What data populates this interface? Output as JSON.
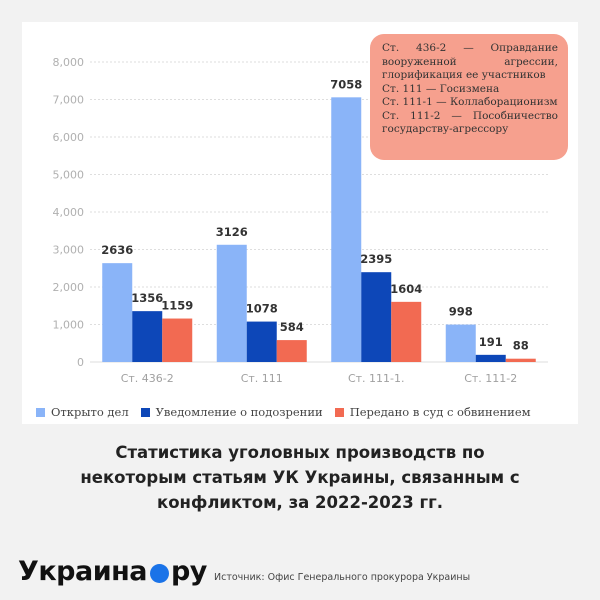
{
  "chart_data": {
    "type": "bar",
    "categories": [
      "Ст. 436-2",
      "Ст. 111",
      "Ст. 111-1.",
      "Ст. 111-2"
    ],
    "series": [
      {
        "name": "Открыто дел",
        "values": [
          2636,
          3126,
          7058,
          998
        ],
        "color": "#8ab4f8"
      },
      {
        "name": "Уведомление о подозрении",
        "values": [
          1356,
          1078,
          2395,
          191
        ],
        "color": "#0d47b8"
      },
      {
        "name": "Передано в суд с обвинением",
        "values": [
          1159,
          584,
          1604,
          88
        ],
        "color": "#f26a52"
      }
    ],
    "ylim": [
      0,
      8000
    ],
    "yticks": [
      "0",
      "1,000",
      "2,000",
      "3,000",
      "4,000",
      "5,000",
      "6,000",
      "7,000",
      "8,000"
    ],
    "grid": true,
    "legend": "bottom"
  },
  "note": {
    "lines": [
      "Ст. 436-2 — Оправдание",
      "вооруженной агрессии,",
      "глорификация ее участников",
      "Ст. 111 — Госизмена",
      "Ст. 111-1 — Коллаборационизм",
      "Ст. 111-2 — Пособничество",
      "государству-агрессору"
    ]
  },
  "caption": {
    "lines": [
      "Статистика уголовных производств по",
      "некоторым статьям УК Украины, связанным с",
      "конфликтом, за 2022-2023 гг."
    ]
  },
  "brand": {
    "left": "Украина",
    "right": "ру"
  },
  "source": "Источник: Офис Генерального прокурора Украины"
}
